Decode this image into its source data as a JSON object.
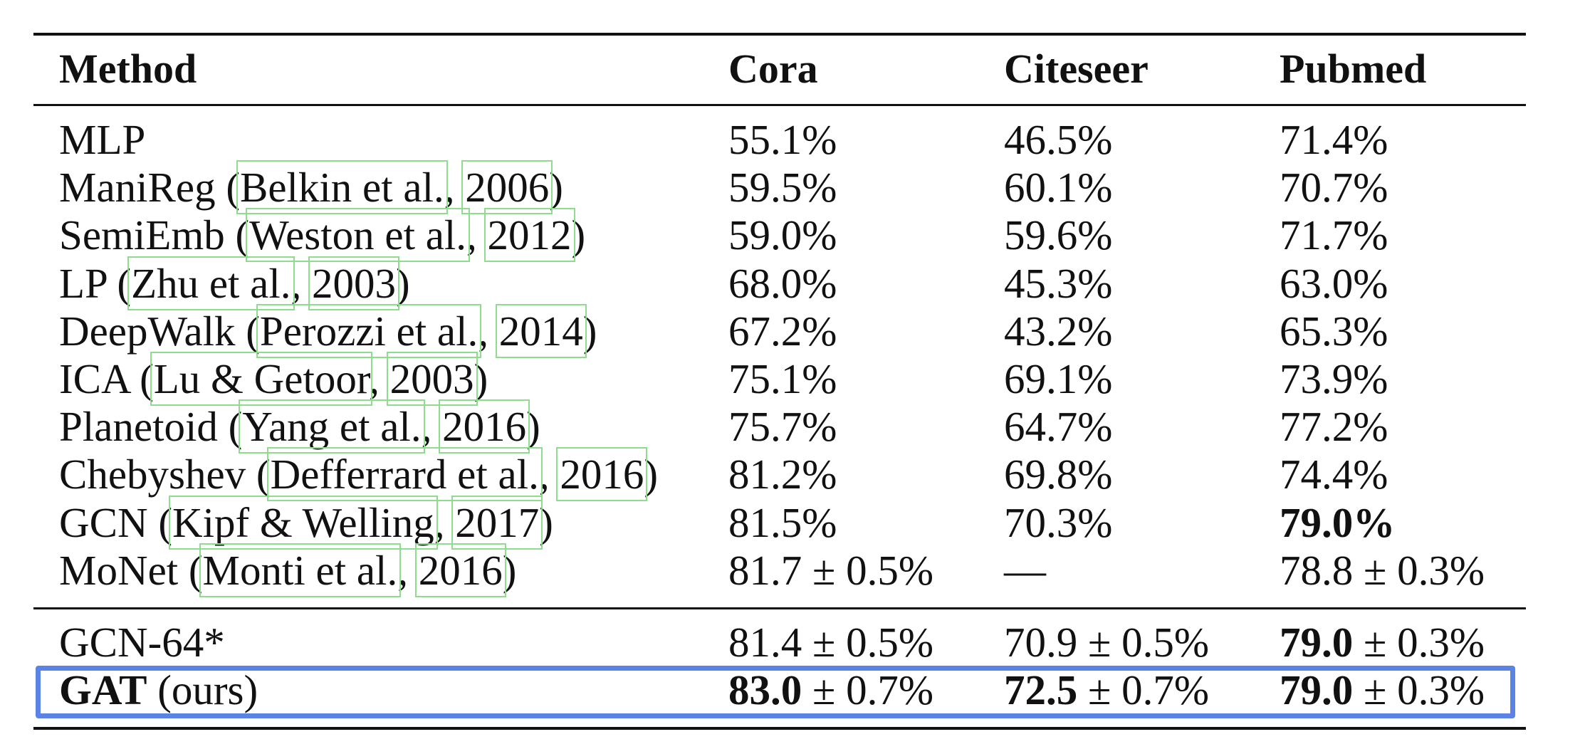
{
  "table": {
    "headers": [
      "Method",
      "Cora",
      "Citeseer",
      "Pubmed"
    ],
    "rows": [
      {
        "method": "MLP",
        "cite_parts": [],
        "cora": "55.1%",
        "citeseer": "46.5%",
        "pubmed": "71.4%"
      },
      {
        "method": "ManiReg (",
        "cite_parts": [
          "Belkin et al.",
          ", ",
          "2006",
          ")"
        ],
        "cora": "59.5%",
        "citeseer": "60.1%",
        "pubmed": "70.7%"
      },
      {
        "method": "SemiEmb (",
        "cite_parts": [
          "Weston et al.",
          ", ",
          "2012",
          ")"
        ],
        "cora": "59.0%",
        "citeseer": "59.6%",
        "pubmed": "71.7%"
      },
      {
        "method": "LP (",
        "cite_parts": [
          "Zhu et al.",
          ", ",
          "2003",
          ")"
        ],
        "cora": "68.0%",
        "citeseer": "45.3%",
        "pubmed": "63.0%"
      },
      {
        "method": "DeepWalk (",
        "cite_parts": [
          "Perozzi et al.",
          ", ",
          "2014",
          ")"
        ],
        "cora": "67.2%",
        "citeseer": "43.2%",
        "pubmed": "65.3%"
      },
      {
        "method": "ICA (",
        "cite_parts": [
          "Lu & Getoor",
          ", ",
          "2003",
          ")"
        ],
        "cora": "75.1%",
        "citeseer": "69.1%",
        "pubmed": "73.9%"
      },
      {
        "method": "Planetoid (",
        "cite_parts": [
          "Yang et al.",
          ", ",
          "2016",
          ")"
        ],
        "cora": "75.7%",
        "citeseer": "64.7%",
        "pubmed": "77.2%"
      },
      {
        "method": "Chebyshev (",
        "cite_parts": [
          "Defferrard et al.",
          ", ",
          "2016",
          ")"
        ],
        "cora": "81.2%",
        "citeseer": "69.8%",
        "pubmed": "74.4%"
      },
      {
        "method": "GCN (",
        "cite_parts": [
          "Kipf & Welling",
          ", ",
          "2017",
          ")"
        ],
        "cora": "81.5%",
        "citeseer": "70.3%",
        "pubmed": "79.0%",
        "pubmed_bold": true
      },
      {
        "method": "MoNet (",
        "cite_parts": [
          "Monti et al.",
          ", ",
          "2016",
          ")"
        ],
        "cora": "81.7 ± 0.5%",
        "citeseer": "—",
        "pubmed": "78.8 ± 0.3%"
      }
    ],
    "gcn64": {
      "method": "GCN-64*",
      "cora": "81.4 ± 0.5%",
      "citeseer": "70.9 ± 0.5%",
      "pubmed_bold": "79.0",
      "pubmed_rest": " ± 0.3%"
    },
    "gat": {
      "method_bold": "GAT",
      "method_rest": " (ours)",
      "cora_bold": "83.0",
      "cora_rest": " ± 0.7%",
      "citeseer_bold": "72.5",
      "citeseer_rest": " ± 0.7%",
      "pubmed_bold": "79.0",
      "pubmed_rest": " ± 0.3%"
    }
  },
  "colors": {
    "citation_box": "#8fdc8f",
    "highlight_box": "#5b82e5"
  }
}
